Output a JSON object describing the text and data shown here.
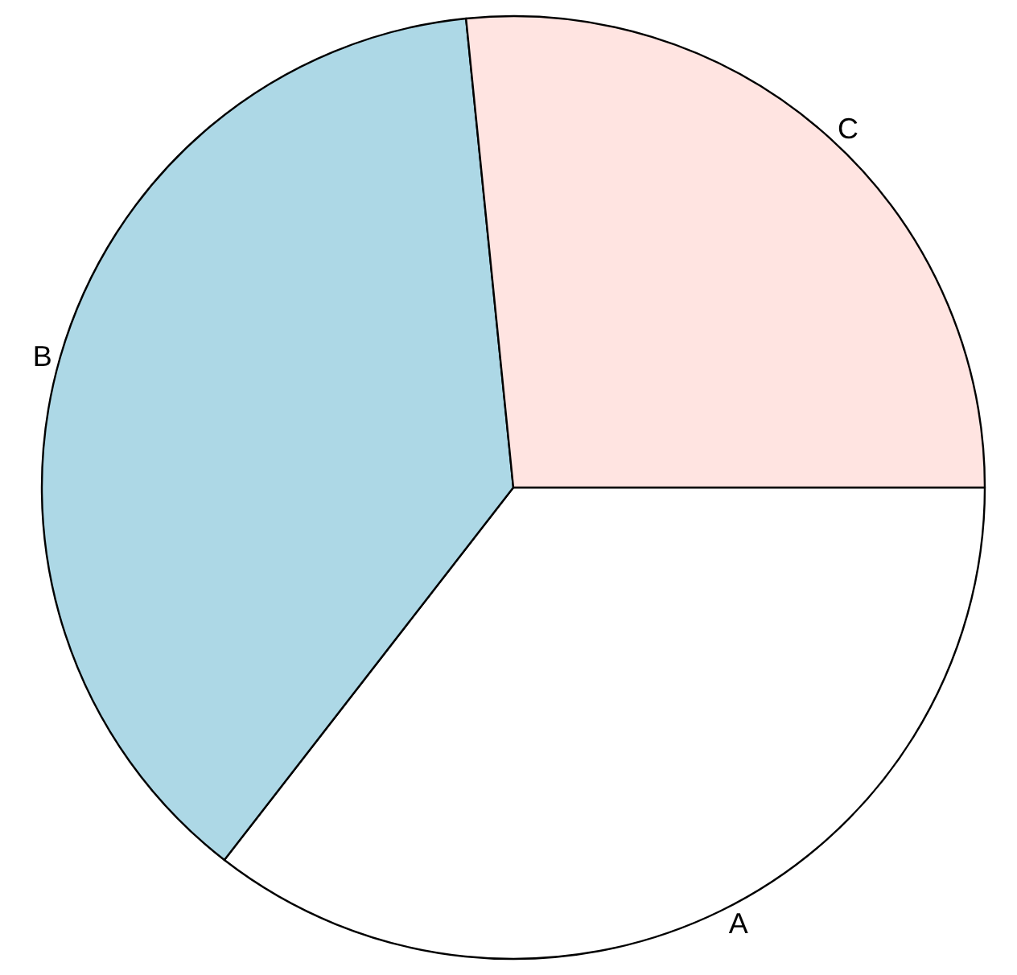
{
  "chart_data": {
    "type": "pie",
    "categories": [
      "A",
      "B",
      "C"
    ],
    "values": [
      35.5,
      37.9,
      26.6
    ],
    "colors": [
      "#ffffff",
      "#add8e6",
      "#ffe4e1"
    ],
    "legend": false
  }
}
